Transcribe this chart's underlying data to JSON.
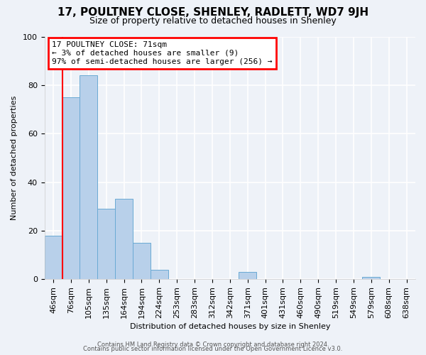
{
  "title": "17, POULTNEY CLOSE, SHENLEY, RADLETT, WD7 9JH",
  "subtitle": "Size of property relative to detached houses in Shenley",
  "xlabel": "Distribution of detached houses by size in Shenley",
  "ylabel": "Number of detached properties",
  "categories": [
    "46sqm",
    "76sqm",
    "105sqm",
    "135sqm",
    "164sqm",
    "194sqm",
    "224sqm",
    "253sqm",
    "283sqm",
    "312sqm",
    "342sqm",
    "371sqm",
    "401sqm",
    "431sqm",
    "460sqm",
    "490sqm",
    "519sqm",
    "549sqm",
    "579sqm",
    "608sqm",
    "638sqm"
  ],
  "values": [
    18,
    75,
    84,
    29,
    33,
    15,
    4,
    0,
    0,
    0,
    0,
    3,
    0,
    0,
    0,
    0,
    0,
    0,
    1,
    0,
    0
  ],
  "bar_color": "#b8d0ea",
  "bar_edge_color": "#6aaad4",
  "annotation_text": "17 POULTNEY CLOSE: 71sqm\n← 3% of detached houses are smaller (9)\n97% of semi-detached houses are larger (256) →",
  "annotation_box_color": "white",
  "annotation_box_edge_color": "red",
  "highlight_line_color": "red",
  "ylim": [
    0,
    100
  ],
  "yticks": [
    0,
    20,
    40,
    60,
    80,
    100
  ],
  "footer1": "Contains HM Land Registry data © Crown copyright and database right 2024.",
  "footer2": "Contains public sector information licensed under the Open Government Licence v3.0.",
  "background_color": "#eef2f8",
  "grid_color": "white",
  "title_fontsize": 11,
  "subtitle_fontsize": 9,
  "axis_label_fontsize": 8,
  "tick_fontsize": 8,
  "annotation_fontsize": 8,
  "footer_fontsize": 6
}
